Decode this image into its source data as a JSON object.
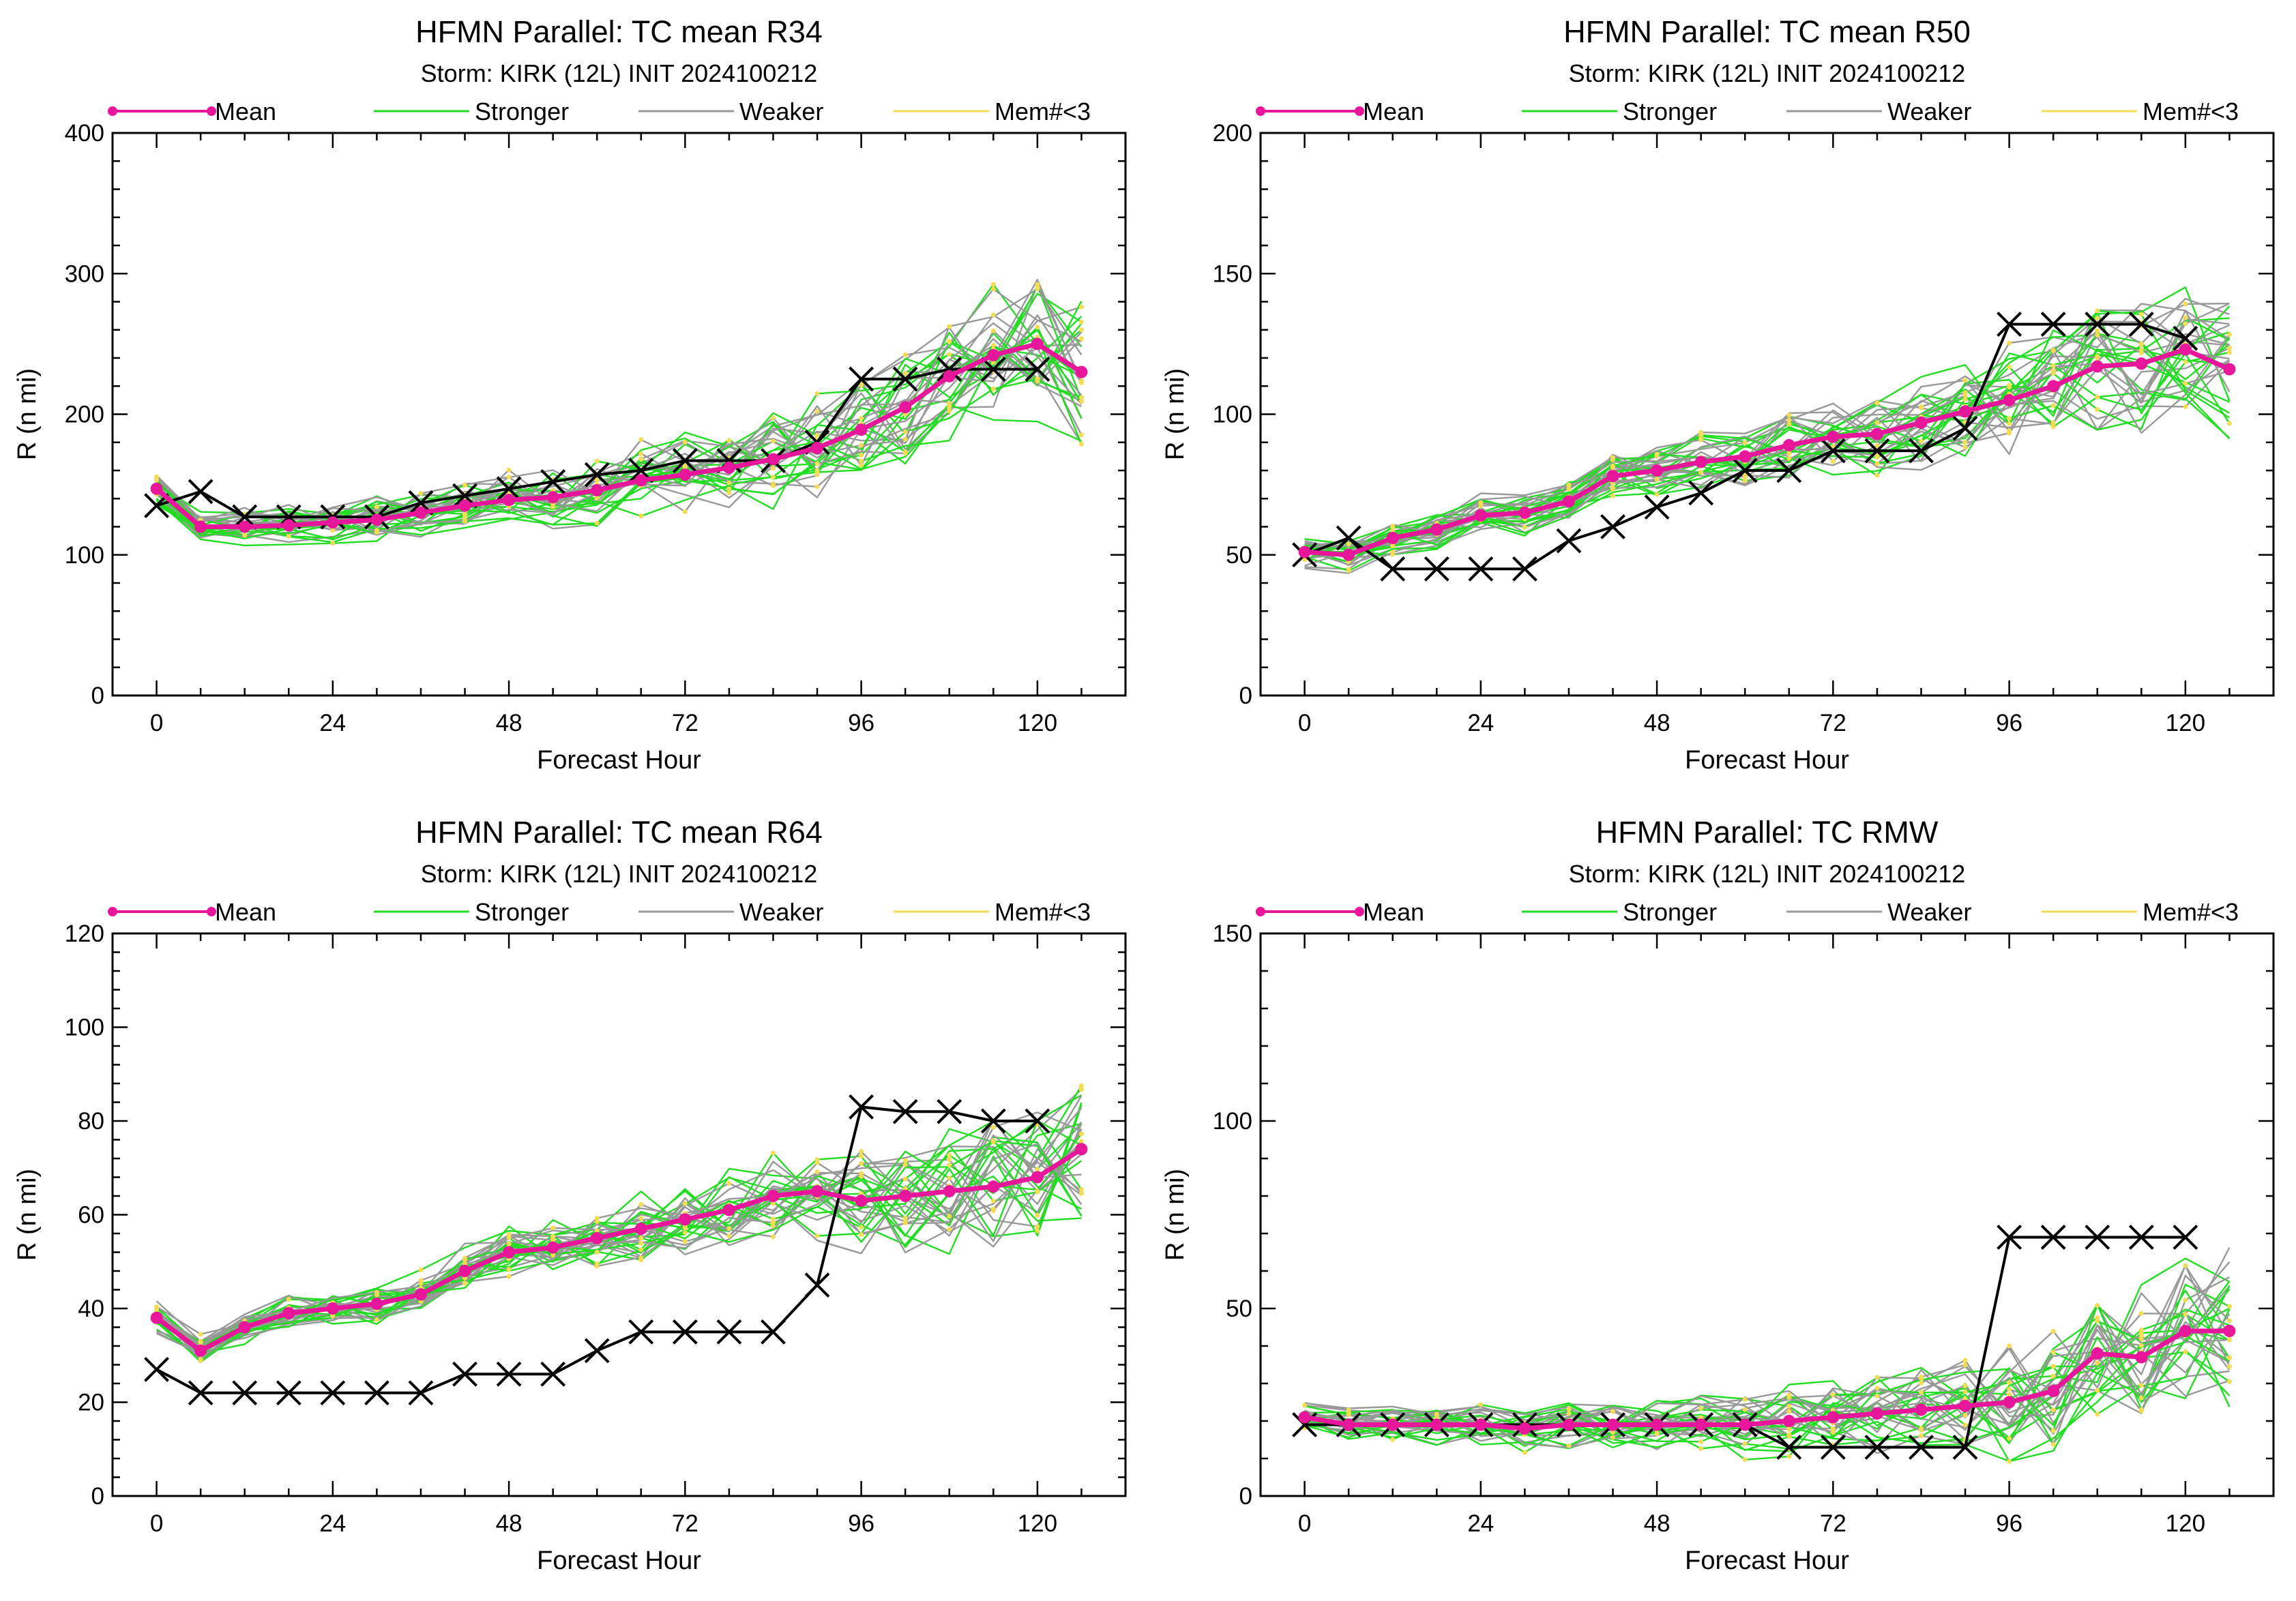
{
  "legend": [
    {
      "label": "Mean",
      "color": "#e8169a",
      "style": "line-dot"
    },
    {
      "label": "Stronger",
      "color": "#22dd22",
      "style": "line"
    },
    {
      "label": "Weaker",
      "color": "#999999",
      "style": "line"
    },
    {
      "label": "Mem#<3",
      "color": "#f2dd55",
      "style": "line"
    }
  ],
  "colors": {
    "mean": "#e8169a",
    "stronger": "#22dd22",
    "weaker": "#999999",
    "sparse": "#f2dd55",
    "best_track": "#000000"
  },
  "chart_data": [
    {
      "type": "line",
      "title": "HFMN Parallel: TC mean R34",
      "subtitle": "Storm: KIRK (12L) INIT 2024100212",
      "xlabel": "Forecast Hour",
      "ylabel": "R (n mi)",
      "xlim": [
        -6,
        132
      ],
      "ylim": [
        0,
        400
      ],
      "xticks": [
        0,
        24,
        48,
        72,
        96,
        120
      ],
      "yticks": [
        0,
        100,
        200,
        300,
        400
      ],
      "legend_position": "top",
      "series": [
        {
          "name": "Mean",
          "x": [
            0,
            6,
            12,
            18,
            24,
            30,
            36,
            42,
            48,
            54,
            60,
            66,
            72,
            78,
            84,
            90,
            96,
            102,
            108,
            114,
            120,
            126
          ],
          "y": [
            147,
            120,
            120,
            121,
            123,
            125,
            130,
            135,
            139,
            141,
            146,
            153,
            157,
            162,
            168,
            176,
            189,
            205,
            227,
            242,
            250,
            230
          ]
        },
        {
          "name": "",
          "kind": "best_track",
          "x": [
            0,
            6,
            12,
            18,
            24,
            30,
            36,
            42,
            48,
            54,
            60,
            66,
            72,
            78,
            84,
            90,
            96,
            102,
            108,
            114,
            120
          ],
          "y": [
            135,
            145,
            127,
            127,
            127,
            127,
            137,
            142,
            147,
            152,
            157,
            160,
            167,
            167,
            167,
            180,
            225,
            225,
            232,
            232,
            232
          ]
        }
      ]
    },
    {
      "type": "line",
      "title": "HFMN Parallel: TC mean R50",
      "subtitle": "Storm: KIRK (12L) INIT 2024100212",
      "xlabel": "Forecast Hour",
      "ylabel": "R (n mi)",
      "xlim": [
        -6,
        132
      ],
      "ylim": [
        0,
        200
      ],
      "xticks": [
        0,
        24,
        48,
        72,
        96,
        120
      ],
      "yticks": [
        0,
        50,
        100,
        150,
        200
      ],
      "legend_position": "top",
      "series": [
        {
          "name": "Mean",
          "x": [
            0,
            6,
            12,
            18,
            24,
            30,
            36,
            42,
            48,
            54,
            60,
            66,
            72,
            78,
            84,
            90,
            96,
            102,
            108,
            114,
            120,
            126
          ],
          "y": [
            51,
            50,
            56,
            59,
            64,
            65,
            69,
            78,
            80,
            83,
            85,
            89,
            92,
            93,
            97,
            101,
            105,
            110,
            117,
            118,
            123,
            116
          ]
        },
        {
          "name": "",
          "kind": "best_track",
          "x": [
            0,
            6,
            12,
            18,
            24,
            30,
            36,
            42,
            48,
            54,
            60,
            66,
            72,
            78,
            84,
            90,
            96,
            102,
            108,
            114,
            120
          ],
          "y": [
            50,
            56,
            45,
            45,
            45,
            45,
            55,
            60,
            67,
            72,
            80,
            80,
            87,
            87,
            87,
            95,
            132,
            132,
            132,
            132,
            127
          ]
        }
      ]
    },
    {
      "type": "line",
      "title": "HFMN Parallel: TC mean R64",
      "subtitle": "Storm: KIRK (12L) INIT 2024100212",
      "xlabel": "Forecast Hour",
      "ylabel": "R (n mi)",
      "xlim": [
        -6,
        132
      ],
      "ylim": [
        0,
        120
      ],
      "xticks": [
        0,
        24,
        48,
        72,
        96,
        120
      ],
      "yticks": [
        0,
        20,
        40,
        60,
        80,
        100,
        120
      ],
      "legend_position": "top",
      "series": [
        {
          "name": "Mean",
          "x": [
            0,
            6,
            12,
            18,
            24,
            30,
            36,
            42,
            48,
            54,
            60,
            66,
            72,
            78,
            84,
            90,
            96,
            102,
            108,
            114,
            120,
            126
          ],
          "y": [
            38,
            31,
            36,
            39,
            40,
            41,
            43,
            48,
            52,
            53,
            55,
            57,
            59,
            61,
            64,
            65,
            63,
            64,
            65,
            66,
            68,
            74
          ]
        },
        {
          "name": "",
          "kind": "best_track",
          "x": [
            0,
            6,
            12,
            18,
            24,
            30,
            36,
            42,
            48,
            54,
            60,
            66,
            72,
            78,
            84,
            90,
            96,
            102,
            108,
            114,
            120
          ],
          "y": [
            27,
            22,
            22,
            22,
            22,
            22,
            22,
            26,
            26,
            26,
            31,
            35,
            35,
            35,
            35,
            45,
            83,
            82,
            82,
            80,
            80
          ]
        }
      ]
    },
    {
      "type": "line",
      "title": "HFMN Parallel: TC RMW",
      "subtitle": "Storm: KIRK (12L) INIT 2024100212",
      "xlabel": "Forecast Hour",
      "ylabel": "R (n mi)",
      "xlim": [
        -6,
        132
      ],
      "ylim": [
        0,
        150
      ],
      "xticks": [
        0,
        24,
        48,
        72,
        96,
        120
      ],
      "yticks": [
        0,
        50,
        100,
        150
      ],
      "legend_position": "top",
      "series": [
        {
          "name": "Mean",
          "x": [
            0,
            6,
            12,
            18,
            24,
            30,
            36,
            42,
            48,
            54,
            60,
            66,
            72,
            78,
            84,
            90,
            96,
            102,
            108,
            114,
            120,
            126
          ],
          "y": [
            21,
            19,
            19,
            19,
            19,
            18,
            19,
            19,
            19,
            19,
            19,
            20,
            21,
            22,
            23,
            24,
            25,
            28,
            38,
            37,
            44,
            44
          ]
        },
        {
          "name": "",
          "kind": "best_track",
          "x": [
            0,
            6,
            12,
            18,
            24,
            30,
            36,
            42,
            48,
            54,
            60,
            66,
            72,
            78,
            84,
            90,
            96,
            102,
            108,
            114,
            120
          ],
          "y": [
            19,
            19,
            19,
            19,
            19,
            19,
            19,
            19,
            19,
            19,
            19,
            13,
            13,
            13,
            13,
            13,
            69,
            69,
            69,
            69,
            69
          ]
        }
      ]
    }
  ]
}
